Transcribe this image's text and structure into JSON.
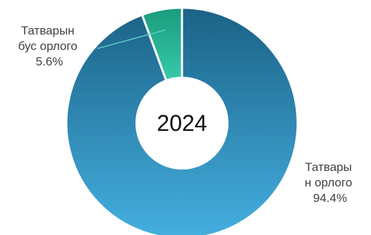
{
  "chart_data": {
    "type": "pie",
    "variant": "donut",
    "center_label": "2024",
    "slices": [
      {
        "label_lines": [
          "Татварын",
          "бус орлого",
          "5.6%"
        ],
        "value": 5.6,
        "color_dark": "#1b9b7d",
        "color_light": "#47e6c2"
      },
      {
        "label_lines": [
          "Татвары",
          "н орлого",
          "94.4%"
        ],
        "value": 94.4,
        "color_dark": "#1b6286",
        "color_light": "#45afe0"
      }
    ],
    "start_angle_deg": 0,
    "direction": "clockwise",
    "legend": "none",
    "leader_line_color": "#5cc9c0"
  }
}
